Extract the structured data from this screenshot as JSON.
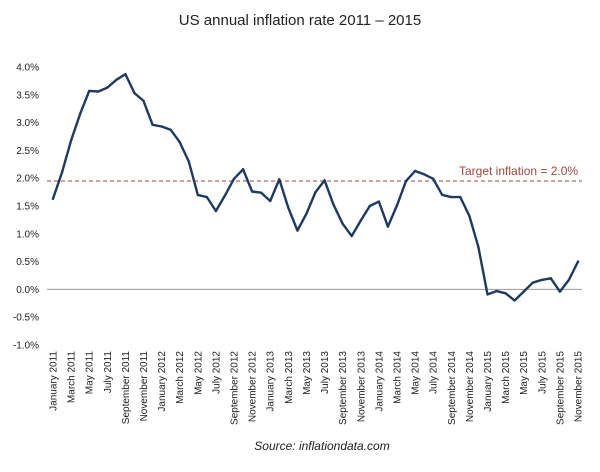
{
  "chart_data": {
    "type": "line",
    "title": "US annual inflation rate  2011 – 2015",
    "source": "Source: inflationdata.com",
    "xlabel": "",
    "ylabel": "",
    "ylim": [
      -1.0,
      4.0
    ],
    "yticks": [
      "4.0%",
      "3.5%",
      "3.0%",
      "2.5%",
      "2.0%",
      "1.5%",
      "1.0%",
      "0.5%",
      "0.0%",
      "-0.5%",
      "-1.0%"
    ],
    "ytick_values": [
      4.0,
      3.5,
      3.0,
      2.5,
      2.0,
      1.5,
      1.0,
      0.5,
      0.0,
      -0.5,
      -1.0
    ],
    "grid": false,
    "line_color": "#1f3a5f",
    "target": {
      "value": 1.95,
      "label": "Target inflation = 2.0%",
      "color": "#a0443c"
    },
    "x_labels": [
      "January 2011",
      "March 2011",
      "May 2011",
      "July 2011",
      "September 2011",
      "November 2011",
      "January 2012",
      "March 2012",
      "May 2012",
      "July 2012",
      "September 2012",
      "November 2012",
      "January 2013",
      "March 2013",
      "May 2013",
      "July 2013",
      "September 2013",
      "November 2013",
      "January 2014",
      "March 2014",
      "May 2014",
      "July 2014",
      "September 2014",
      "November 2014",
      "January 2015",
      "March 2015",
      "May 2015",
      "July 2015",
      "September 2015",
      "November 2015"
    ],
    "x": [
      "Jan 2011",
      "Feb 2011",
      "Mar 2011",
      "Apr 2011",
      "May 2011",
      "Jun 2011",
      "Jul 2011",
      "Aug 2011",
      "Sep 2011",
      "Oct 2011",
      "Nov 2011",
      "Dec 2011",
      "Jan 2012",
      "Feb 2012",
      "Mar 2012",
      "Apr 2012",
      "May 2012",
      "Jun 2012",
      "Jul 2012",
      "Aug 2012",
      "Sep 2012",
      "Oct 2012",
      "Nov 2012",
      "Dec 2012",
      "Jan 2013",
      "Feb 2013",
      "Mar 2013",
      "Apr 2013",
      "May 2013",
      "Jun 2013",
      "Jul 2013",
      "Aug 2013",
      "Sep 2013",
      "Oct 2013",
      "Nov 2013",
      "Dec 2013",
      "Jan 2014",
      "Feb 2014",
      "Mar 2014",
      "Apr 2014",
      "May 2014",
      "Jun 2014",
      "Jul 2014",
      "Aug 2014",
      "Sep 2014",
      "Oct 2014",
      "Nov 2014",
      "Dec 2014",
      "Jan 2015",
      "Feb 2015",
      "Mar 2015",
      "Apr 2015",
      "May 2015",
      "Jun 2015",
      "Jul 2015",
      "Aug 2015",
      "Sep 2015",
      "Oct 2015",
      "Nov 2015"
    ],
    "series": [
      {
        "values": [
          1.63,
          2.11,
          2.68,
          3.16,
          3.57,
          3.56,
          3.63,
          3.77,
          3.87,
          3.53,
          3.39,
          2.96,
          2.93,
          2.87,
          2.65,
          2.3,
          1.7,
          1.66,
          1.41,
          1.69,
          1.99,
          2.16,
          1.76,
          1.74,
          1.59,
          1.98,
          1.47,
          1.06,
          1.36,
          1.75,
          1.96,
          1.52,
          1.18,
          0.96,
          1.24,
          1.5,
          1.58,
          1.13,
          1.51,
          1.95,
          2.13,
          2.07,
          1.99,
          1.7,
          1.66,
          1.66,
          1.32,
          0.76,
          -0.09,
          -0.03,
          -0.07,
          -0.2,
          -0.04,
          0.12,
          0.17,
          0.2,
          -0.04,
          0.17,
          0.5
        ]
      }
    ]
  }
}
